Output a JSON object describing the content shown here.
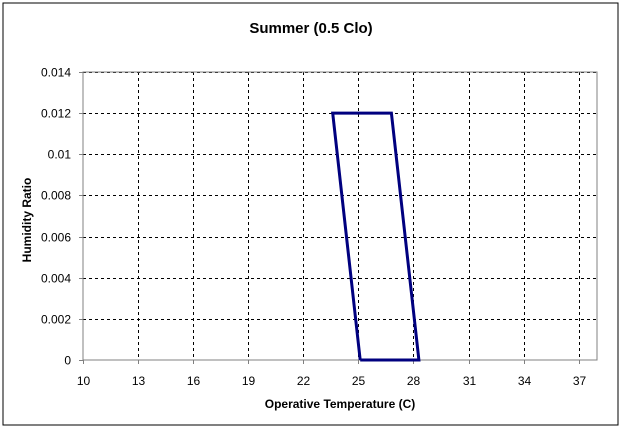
{
  "chart_data": {
    "type": "line",
    "title": "Summer (0.5 Clo)",
    "xlabel": "Operative Temperature (C)",
    "ylabel": "Humidity Ratio",
    "xlim": [
      10,
      38
    ],
    "ylim": [
      0,
      0.014
    ],
    "x_ticks": [
      10,
      13,
      16,
      19,
      22,
      25,
      28,
      31,
      34,
      37
    ],
    "x_tick_labels": [
      "10",
      "13",
      "16",
      "19",
      "22",
      "25",
      "28",
      "31",
      "34",
      "37"
    ],
    "y_ticks": [
      0,
      0.002,
      0.004,
      0.006,
      0.008,
      0.01,
      0.012,
      0.014
    ],
    "y_tick_labels": [
      "0",
      "0.002",
      "0.004",
      "0.006",
      "0.008",
      "0.01",
      "0.012",
      "0.014"
    ],
    "grid": true,
    "grid_style": "dashed",
    "legend": false,
    "series": [
      {
        "color": "#00007f",
        "x": [
          25.1,
          23.6,
          26.8,
          28.3,
          25.1
        ],
        "y": [
          0,
          0.012,
          0.012,
          0,
          0
        ]
      }
    ]
  }
}
